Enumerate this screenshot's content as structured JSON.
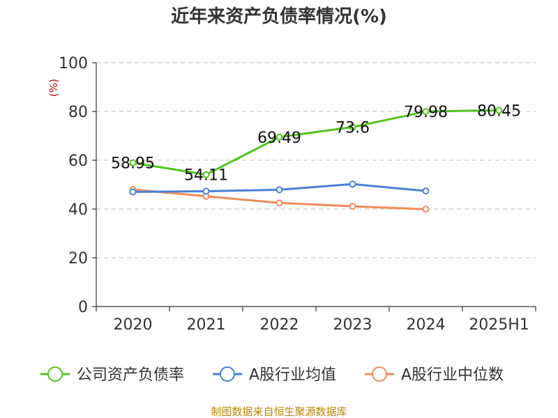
{
  "chart_data": {
    "type": "line",
    "title": "近年来资产负债率情况(%)",
    "ylabel": "(%)",
    "xlabel": "",
    "categories": [
      "2020",
      "2021",
      "2022",
      "2023",
      "2024",
      "2025H1"
    ],
    "ylim": [
      0,
      100
    ],
    "yticks": [
      0,
      20,
      40,
      60,
      80,
      100
    ],
    "grid": true,
    "legend_position": "bottom",
    "series": [
      {
        "name": "公司资产负债率",
        "color": "#52c41a",
        "values": [
          58.95,
          54.11,
          69.49,
          73.6,
          79.98,
          80.45
        ],
        "labels": [
          "58.95",
          "54.11",
          "69.49",
          "73.6",
          "79.98",
          "80.45"
        ]
      },
      {
        "name": "A股行业均值",
        "color": "#4a7fd9",
        "values": [
          47.0,
          47.3,
          47.9,
          50.2,
          47.4,
          null
        ]
      },
      {
        "name": "A股行业中位数",
        "color": "#f28c5a",
        "values": [
          48.0,
          45.2,
          42.5,
          41.1,
          39.9,
          null
        ]
      }
    ]
  },
  "source": "制图数据来自恒生聚源数据库"
}
